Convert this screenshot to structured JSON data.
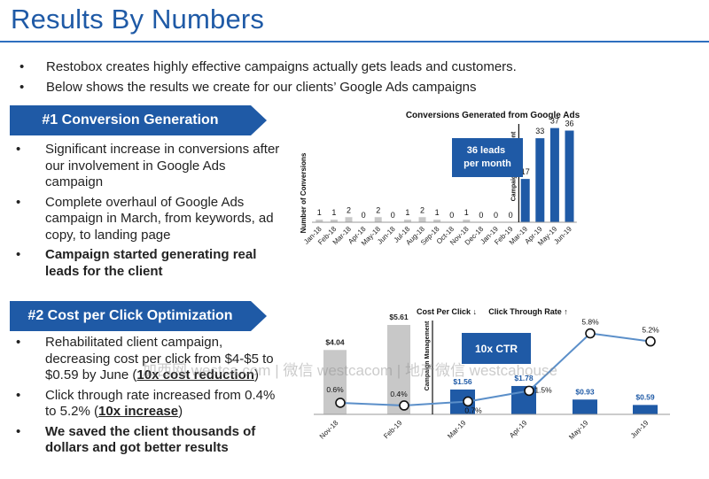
{
  "page": {
    "title": "Results By Numbers",
    "watermark": "加西网 westca.com | 微信 westcacom | 地产微信 westcahouse"
  },
  "intro_bullets": [
    "Restobox creates highly effective campaigns actually gets leads and customers.",
    "Below shows the results we create for our clients’ Google Ads campaigns"
  ],
  "section1": {
    "banner": "#1 Conversion Generation",
    "bullets": [
      "Significant increase in conversions after our involvement in Google Ads campaign",
      "Complete overhaul of Google Ads campaign in March, from keywords, ad copy, to landing page",
      "Campaign started generating real leads for the client"
    ]
  },
  "section2": {
    "banner": "#2 Cost per Click Optimization",
    "b1_pre": "Rehabilitated client campaign, decreasing cost per click from $4-$5 to $0.59 by June (",
    "b1_em": "10x cost reduction",
    "b1_post": ")",
    "b2_pre": "Click through rate increased from 0.4% to 5.2% (",
    "b2_em": "10x increase",
    "b2_post": ")",
    "b3": "We saved the client thousands of dollars and got better results"
  },
  "colors": {
    "brand_blue": "#1f5aa6",
    "gray_bar": "#c8c8c8",
    "line_blue": "#5b8fc9"
  },
  "chart_data": [
    {
      "type": "bar",
      "title": "Conversions Generated from Google Ads",
      "ylabel": "Number of Conversions",
      "categories": [
        "Jan-18",
        "Feb-18",
        "Mar-18",
        "Apr-18",
        "May-18",
        "Jun-18",
        "Jul-18",
        "Aug-18",
        "Sep-18",
        "Oct-18",
        "Nov-18",
        "Dec-18",
        "Jan-19",
        "Feb-19",
        "Mar-19",
        "Apr-19",
        "May-19",
        "Jun-19"
      ],
      "values": [
        1,
        1,
        2,
        0,
        2,
        0,
        1,
        2,
        1,
        0,
        1,
        0,
        0,
        0,
        17,
        33,
        37,
        36
      ],
      "ylim": [
        0,
        40
      ],
      "callout": "36 leads per month",
      "divider_label": "Campaign Management",
      "divider_after": "Feb-19"
    },
    {
      "type": "bar",
      "subtitle_cpc": "Cost Per Click ↓",
      "subtitle_ctr": "Click Through Rate ↑",
      "categories": [
        "Nov-18",
        "Feb-19",
        "Mar-19",
        "Apr-19",
        "May-19",
        "Jun-19"
      ],
      "series": [
        {
          "name": "Cost Per Click",
          "values": [
            4.04,
            5.61,
            1.56,
            1.78,
            0.93,
            0.59
          ]
        },
        {
          "name": "Click Through Rate",
          "values": [
            0.6,
            0.4,
            0.7,
            1.5,
            5.8,
            5.2
          ]
        }
      ],
      "cpc_labels": [
        "$4.04",
        "$5.61",
        "$1.56",
        "$1.78",
        "$0.93",
        "$0.59"
      ],
      "ctr_labels": [
        "0.6%",
        "0.4%",
        "0.7%",
        "1.5%",
        "5.8%",
        "5.2%"
      ],
      "cpc_ylim": [
        0,
        6
      ],
      "ctr_ylim": [
        0,
        6.5
      ],
      "callout": "10x CTR",
      "divider_label": "Campaign Management",
      "divider_after": "Feb-19"
    }
  ]
}
